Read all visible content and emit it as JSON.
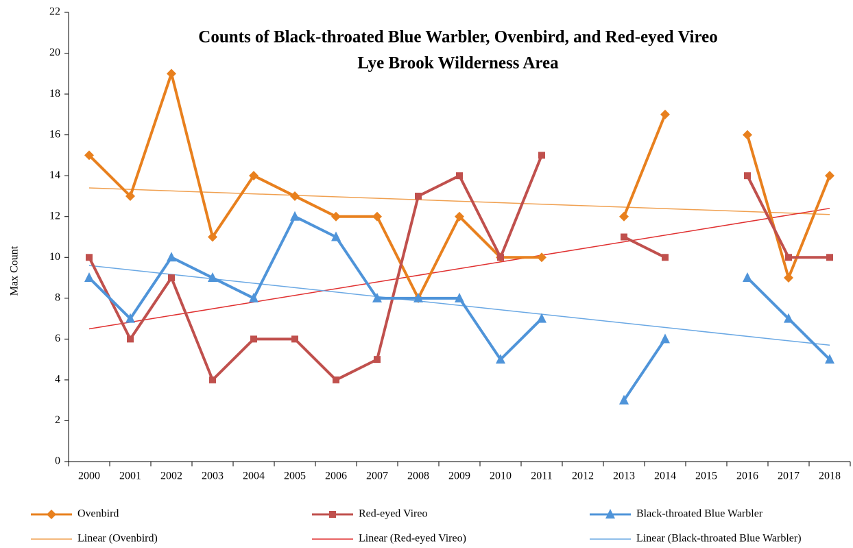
{
  "chart_data": {
    "type": "line",
    "title": [
      "Counts of Black-throated Blue Warbler, Ovenbird, and Red-eyed Vireo",
      "Lye Brook Wilderness Area"
    ],
    "y_label": "Max Count",
    "categories": [
      "2000",
      "2001",
      "2002",
      "2003",
      "2004",
      "2005",
      "2006",
      "2007",
      "2008",
      "2009",
      "2010",
      "2011",
      "2012",
      "2013",
      "2014",
      "2015",
      "2016",
      "2017",
      "2018"
    ],
    "series": [
      {
        "name": "Ovenbird",
        "color": "#e8801e",
        "marker": "diamond",
        "values": [
          15,
          13,
          19,
          11,
          14,
          13,
          12,
          12,
          8,
          12,
          10,
          10,
          null,
          12,
          17,
          null,
          16,
          9,
          14
        ]
      },
      {
        "name": "Red-eyed Vireo",
        "color": "#c0504d",
        "marker": "square",
        "values": [
          10,
          6,
          9,
          4,
          6,
          6,
          4,
          5,
          13,
          14,
          10,
          15,
          null,
          11,
          10,
          null,
          14,
          10,
          10
        ]
      },
      {
        "name": "Black-throated Blue Warbler",
        "color": "#4f94d9",
        "marker": "triangle",
        "values": [
          9,
          7,
          10,
          9,
          8,
          12,
          11,
          8,
          8,
          8,
          5,
          7,
          null,
          3,
          6,
          null,
          9,
          7,
          5
        ]
      }
    ],
    "trendlines": [
      {
        "name": "Linear (Ovenbird)",
        "color": "#f0a050",
        "values": [
          13.4,
          12.1
        ]
      },
      {
        "name": "Linear (Red-eyed Vireo)",
        "color": "#e03030",
        "values": [
          6.5,
          12.4
        ]
      },
      {
        "name": "Linear (Black-throated Blue Warbler)",
        "color": "#6aa8e4",
        "values": [
          9.6,
          5.7
        ]
      }
    ],
    "ylim": [
      0,
      22
    ],
    "yticks": [
      0,
      2,
      4,
      6,
      8,
      10,
      12,
      14,
      16,
      18,
      20,
      22
    ],
    "legend": "bottom"
  }
}
